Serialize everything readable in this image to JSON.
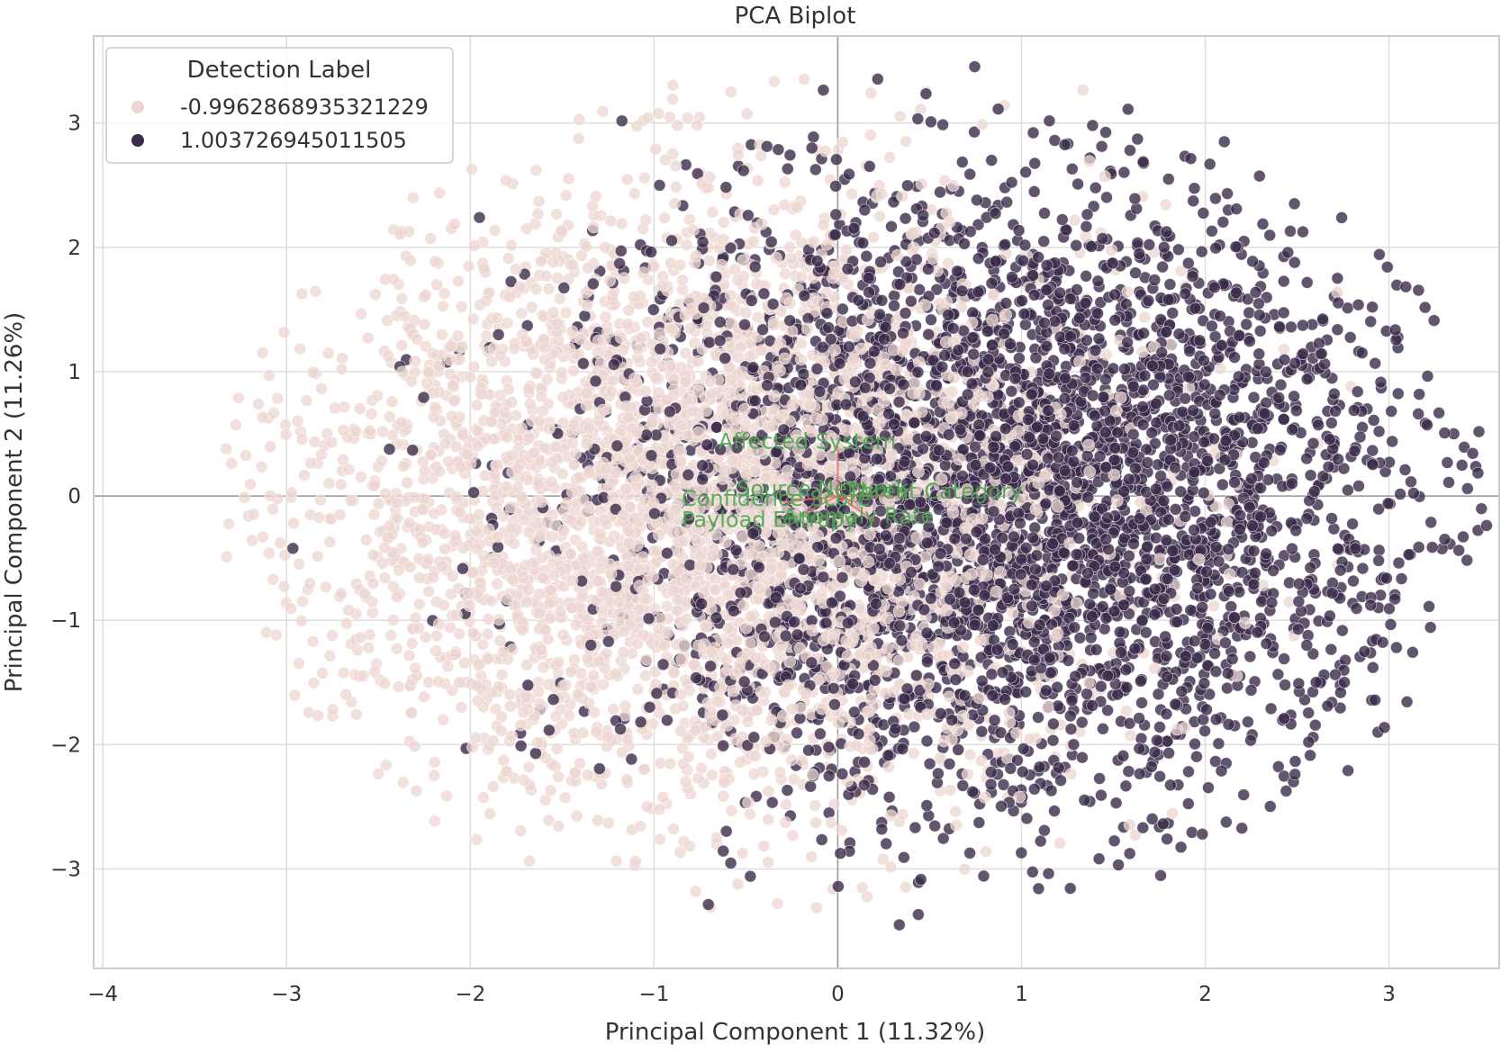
{
  "chart_data": {
    "type": "scatter",
    "title": "PCA Biplot",
    "xlabel": "Principal Component 1 (11.32%)",
    "ylabel": "Principal Component 2 (11.26%)",
    "xlim": [
      -4.05,
      3.6
    ],
    "ylim": [
      -3.8,
      3.7
    ],
    "xticks": [
      -4,
      -3,
      -2,
      -1,
      0,
      1,
      2,
      3
    ],
    "yticks": [
      -3,
      -2,
      -1,
      0,
      1,
      2,
      3
    ],
    "xtick_labels": [
      "−4",
      "−3",
      "−2",
      "−1",
      "0",
      "1",
      "2",
      "3"
    ],
    "ytick_labels": [
      "−3",
      "−2",
      "−1",
      "0",
      "1",
      "2",
      "3"
    ],
    "grid": true,
    "reference_lines": {
      "x": 0,
      "y": 0
    },
    "legend": {
      "title": "Detection Label",
      "placement": "upper-left"
    },
    "series": [
      {
        "name": "-0.9962868935321229",
        "color": "#ecd5d0",
        "center": [
          -0.75,
          -0.05
        ],
        "spread": [
          1.1,
          1.2
        ],
        "n_points": 4200,
        "alpha": 0.75
      },
      {
        "name": "1.003726945011505",
        "color": "#3b2b4a",
        "center": [
          0.9,
          0.0
        ],
        "spread": [
          1.1,
          1.2
        ],
        "n_points": 4200,
        "alpha": 0.8
      }
    ],
    "loadings": {
      "color": "#4da64d",
      "arrow_color": "#e06666",
      "vectors": [
        {
          "label": "Affected System",
          "x": 0.0,
          "y": 0.4,
          "text_x": -0.65,
          "text_y": 0.38
        },
        {
          "label": "Threat Category",
          "x": 0.3,
          "y": 0.0,
          "text_x": 0.05,
          "text_y": -0.02
        },
        {
          "label": "Confidence Score",
          "x": -0.3,
          "y": -0.05,
          "text_x": -0.85,
          "text_y": -0.08
        },
        {
          "label": "Source Network",
          "x": 0.1,
          "y": -0.05,
          "text_x": -0.55,
          "text_y": 0.0
        },
        {
          "label": "Payload Entropy",
          "x": -0.2,
          "y": -0.15,
          "text_x": -0.85,
          "text_y": -0.25
        },
        {
          "label": "Anomaly Rate",
          "x": 0.2,
          "y": -0.2,
          "text_x": -0.3,
          "text_y": -0.22
        }
      ]
    }
  }
}
